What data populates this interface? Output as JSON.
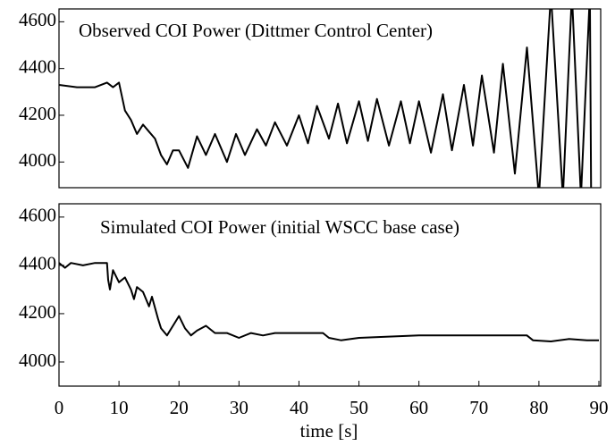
{
  "chart_data": [
    {
      "type": "line",
      "title": "Observed COI Power (Dittmer Control Center)",
      "xlim": [
        0,
        90
      ],
      "ylim": [
        3890,
        4655
      ],
      "yticks": [
        4000,
        4200,
        4400,
        4600
      ],
      "series": [
        {
          "color": "#000000",
          "x": [
            0,
            3,
            6,
            8,
            9,
            10,
            11,
            12,
            13,
            14,
            15,
            16,
            17,
            18,
            19,
            20,
            21.5,
            23,
            24.5,
            26,
            28,
            29.5,
            31,
            33,
            34.5,
            36,
            38,
            40,
            41.5,
            43,
            45,
            46.5,
            48,
            50,
            51.5,
            53,
            55,
            57,
            58.5,
            60,
            62,
            64,
            65.5,
            67.5,
            69,
            70.5,
            72.5,
            74,
            76,
            78,
            80,
            82,
            84,
            85.5,
            87,
            88.5,
            88.7
          ],
          "values": [
            4330,
            4320,
            4320,
            4340,
            4320,
            4340,
            4220,
            4180,
            4120,
            4160,
            4130,
            4100,
            4030,
            3990,
            4050,
            4050,
            3975,
            4110,
            4030,
            4120,
            4000,
            4120,
            4030,
            4140,
            4070,
            4170,
            4070,
            4200,
            4080,
            4240,
            4100,
            4250,
            4080,
            4260,
            4090,
            4270,
            4070,
            4260,
            4080,
            4260,
            4040,
            4290,
            4050,
            4330,
            4070,
            4370,
            4040,
            4420,
            3950,
            4490,
            3850,
            4720,
            3850,
            4720,
            3850,
            4720,
            3850
          ]
        }
      ]
    },
    {
      "type": "line",
      "title": "Simulated COI Power (initial WSCC base case)",
      "xlabel": "time [s]",
      "xlim": [
        0,
        90
      ],
      "ylim": [
        3900,
        4655
      ],
      "yticks": [
        4000,
        4200,
        4400,
        4600
      ],
      "xticks": [
        0,
        10,
        20,
        30,
        40,
        50,
        60,
        70,
        80,
        90
      ],
      "series": [
        {
          "color": "#000000",
          "x": [
            0,
            1,
            2,
            4,
            6,
            8,
            8.2,
            8.5,
            9,
            10,
            11,
            12,
            12.5,
            13,
            14,
            15,
            15.5,
            16.5,
            17,
            18,
            19,
            20,
            21,
            22,
            23,
            24.5,
            26,
            28,
            30,
            32,
            34,
            36,
            40,
            44,
            45,
            47,
            50,
            55,
            60,
            70,
            78,
            79,
            82,
            85,
            88,
            90
          ],
          "values": [
            4410,
            4390,
            4410,
            4400,
            4410,
            4410,
            4340,
            4300,
            4380,
            4330,
            4350,
            4300,
            4260,
            4310,
            4290,
            4230,
            4270,
            4180,
            4140,
            4110,
            4150,
            4190,
            4140,
            4110,
            4130,
            4150,
            4120,
            4120,
            4100,
            4120,
            4110,
            4120,
            4120,
            4120,
            4100,
            4090,
            4100,
            4105,
            4110,
            4110,
            4110,
            4090,
            4085,
            4095,
            4090,
            4090
          ]
        }
      ]
    }
  ]
}
